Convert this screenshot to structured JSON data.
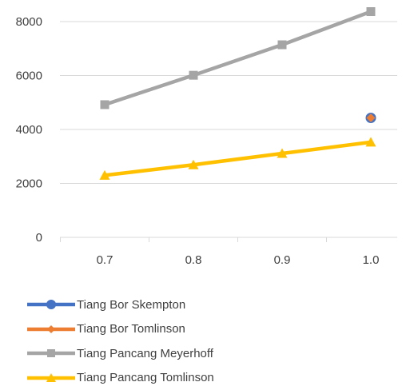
{
  "chart_data": {
    "type": "line",
    "x": [
      0.7,
      0.8,
      0.9,
      1.0
    ],
    "x_tick_labels": [
      "0.7",
      "0.8",
      "0.9",
      "1.0"
    ],
    "y_ticks": [
      0,
      2000,
      4000,
      6000,
      8000
    ],
    "y_tick_labels": [
      "0",
      "2000",
      "4000",
      "6000",
      "8000"
    ],
    "ylim": [
      0,
      8500
    ],
    "grid": "horizontal",
    "legend_position": "bottom",
    "series": [
      {
        "name": "Tiang Bor Skempton",
        "color": "#4472C4",
        "marker": "circle",
        "x": [
          1.0
        ],
        "values": [
          4430
        ]
      },
      {
        "name": "Tiang Bor Tomlinson",
        "color": "#ED7D31",
        "marker": "diamond",
        "x": [
          1.0
        ],
        "values": [
          4430
        ]
      },
      {
        "name": "Tiang Pancang Meyerhoff",
        "color": "#A5A5A5",
        "marker": "square",
        "x": [
          0.7,
          0.8,
          0.9,
          1.0
        ],
        "values": [
          4920,
          6010,
          7140,
          8370
        ]
      },
      {
        "name": "Tiang Pancang Tomlinson",
        "color": "#FFC000",
        "marker": "triangle",
        "x": [
          0.7,
          0.8,
          0.9,
          1.0
        ],
        "values": [
          2300,
          2690,
          3110,
          3530
        ]
      }
    ]
  }
}
